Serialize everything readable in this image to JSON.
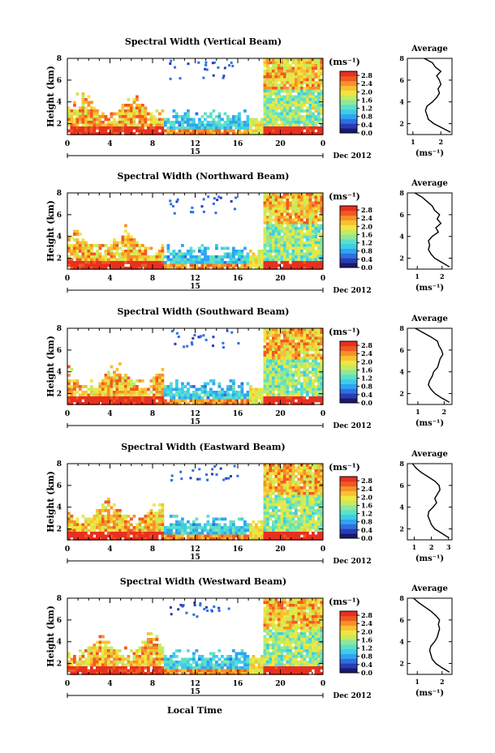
{
  "figure": {
    "xlabel_bottom": "Local Time",
    "date_label": "Dec 2012",
    "day_label": "15",
    "y_axis_label": "Height (km)",
    "unit_label": "(ms⁻¹)",
    "avg_title": "Average"
  },
  "colors": {
    "colormap": [
      "#1a1a6e",
      "#2a3cb4",
      "#2f6fe0",
      "#2fa4f0",
      "#3ccde8",
      "#5de0c8",
      "#8ee89a",
      "#c4ec5e",
      "#f0e640",
      "#f8c030",
      "#f89028",
      "#f05a20",
      "#e83020"
    ],
    "background": "#ffffff",
    "frame": "#000000"
  },
  "chart_data": [
    {
      "type": "heatmap",
      "title": "Spectral Width (Vertical Beam)",
      "ylabel": "Height (km)",
      "x_ticks": [
        "0",
        "4",
        "8",
        "12",
        "16",
        "20",
        "0"
      ],
      "y_ticks": [
        "2",
        "4",
        "6",
        "8"
      ],
      "xlim": [
        0,
        24
      ],
      "ylim": [
        1,
        8
      ],
      "colorbar_ticks": [
        "0.0",
        "0.4",
        "0.8",
        "1.2",
        "1.6",
        "2.0",
        "2.4",
        "2.8"
      ],
      "colorbar_range": [
        0.0,
        3.0
      ],
      "average_profile": {
        "title": "Average",
        "xlabel": "(ms⁻¹)",
        "x_ticks": [
          "1",
          "2"
        ],
        "y_ticks": [
          "2",
          "4",
          "6",
          "8"
        ],
        "xlim": [
          0.8,
          2.4
        ],
        "ylim": [
          1,
          8
        ],
        "height": [
          1.2,
          1.6,
          2.0,
          2.4,
          2.8,
          3.2,
          3.6,
          4.0,
          4.4,
          4.8,
          5.2,
          5.6,
          6.0,
          6.4,
          6.8,
          7.2,
          7.6,
          8.0
        ],
        "value": [
          2.35,
          2.05,
          1.75,
          1.55,
          1.5,
          1.45,
          1.5,
          1.7,
          1.85,
          1.95,
          1.9,
          2.0,
          1.95,
          1.85,
          2.0,
          1.8,
          1.7,
          1.4
        ]
      }
    },
    {
      "type": "heatmap",
      "title": "Spectral Width (Northward Beam)",
      "ylabel": "Height (km)",
      "x_ticks": [
        "0",
        "4",
        "8",
        "12",
        "16",
        "20",
        "0"
      ],
      "y_ticks": [
        "2",
        "4",
        "6",
        "8"
      ],
      "xlim": [
        0,
        24
      ],
      "ylim": [
        1,
        8
      ],
      "colorbar_ticks": [
        "0.0",
        "0.4",
        "0.8",
        "1.2",
        "1.6",
        "2.0",
        "2.4",
        "2.8"
      ],
      "colorbar_range": [
        0.0,
        3.0
      ],
      "average_profile": {
        "title": "Average",
        "xlabel": "(ms⁻¹)",
        "x_ticks": [
          "1",
          "2"
        ],
        "y_ticks": [
          "2",
          "4",
          "6",
          "8"
        ],
        "xlim": [
          0.6,
          2.4
        ],
        "ylim": [
          1,
          8
        ],
        "height": [
          1.2,
          1.6,
          2.0,
          2.4,
          2.8,
          3.2,
          3.6,
          4.0,
          4.4,
          4.8,
          5.2,
          5.6,
          6.0,
          6.4,
          6.8,
          7.2,
          7.6,
          8.0
        ],
        "value": [
          2.3,
          2.0,
          1.7,
          1.55,
          1.45,
          1.5,
          1.45,
          1.6,
          1.85,
          1.75,
          1.95,
          1.8,
          1.9,
          1.7,
          1.6,
          1.4,
          1.2,
          0.9
        ]
      }
    },
    {
      "type": "heatmap",
      "title": "Spectral Width (Southward Beam)",
      "ylabel": "Height (km)",
      "x_ticks": [
        "0",
        "4",
        "8",
        "12",
        "16",
        "20",
        "0"
      ],
      "y_ticks": [
        "2",
        "4",
        "6",
        "8"
      ],
      "xlim": [
        0,
        24
      ],
      "ylim": [
        1,
        8
      ],
      "colorbar_ticks": [
        "0.0",
        "0.4",
        "0.8",
        "1.2",
        "1.6",
        "2.0",
        "2.4",
        "2.8"
      ],
      "colorbar_range": [
        0.0,
        3.0
      ],
      "average_profile": {
        "title": "Average",
        "xlabel": "(ms⁻¹)",
        "x_ticks": [
          "1",
          "2"
        ],
        "y_ticks": [
          "2",
          "4",
          "6",
          "8"
        ],
        "xlim": [
          0.6,
          2.3
        ],
        "ylim": [
          1,
          8
        ],
        "height": [
          1.2,
          1.6,
          2.0,
          2.4,
          2.8,
          3.2,
          3.6,
          4.0,
          4.4,
          4.8,
          5.2,
          5.6,
          6.0,
          6.4,
          6.8,
          7.2,
          7.6,
          8.0
        ],
        "value": [
          2.2,
          1.9,
          1.65,
          1.5,
          1.4,
          1.45,
          1.55,
          1.6,
          1.75,
          1.8,
          1.85,
          1.95,
          1.9,
          1.8,
          1.75,
          1.5,
          1.2,
          0.9
        ]
      }
    },
    {
      "type": "heatmap",
      "title": "Spectral Width (Eastward Beam)",
      "ylabel": "Height (km)",
      "x_ticks": [
        "0",
        "4",
        "8",
        "12",
        "16",
        "20",
        "0"
      ],
      "y_ticks": [
        "2",
        "4",
        "6",
        "8"
      ],
      "xlim": [
        0,
        24
      ],
      "ylim": [
        1,
        8
      ],
      "colorbar_ticks": [
        "0.0",
        "0.4",
        "0.8",
        "1.2",
        "1.6",
        "2.0",
        "2.4",
        "2.8"
      ],
      "colorbar_range": [
        0.0,
        3.0
      ],
      "average_profile": {
        "title": "Average",
        "xlabel": "(ms⁻¹)",
        "x_ticks": [
          "1",
          "2",
          "3"
        ],
        "y_ticks": [
          "2",
          "4",
          "6",
          "8"
        ],
        "xlim": [
          0.6,
          3.2
        ],
        "ylim": [
          1,
          8
        ],
        "height": [
          1.2,
          1.6,
          2.0,
          2.4,
          2.8,
          3.2,
          3.6,
          4.0,
          4.4,
          4.8,
          5.2,
          5.6,
          6.0,
          6.4,
          6.8,
          7.2,
          7.6,
          8.0
        ],
        "value": [
          3.0,
          2.6,
          2.2,
          2.0,
          1.9,
          1.8,
          1.85,
          2.1,
          2.3,
          2.2,
          2.35,
          2.5,
          2.45,
          2.2,
          1.8,
          1.4,
          1.1,
          0.9
        ]
      }
    },
    {
      "type": "heatmap",
      "title": "Spectral Width (Westward Beam)",
      "ylabel": "Height (km)",
      "xlabel": "Local Time",
      "x_ticks": [
        "0",
        "4",
        "8",
        "12",
        "16",
        "20",
        "0"
      ],
      "y_ticks": [
        "2",
        "4",
        "6",
        "8"
      ],
      "xlim": [
        0,
        24
      ],
      "ylim": [
        1,
        8
      ],
      "colorbar_ticks": [
        "0.0",
        "0.4",
        "0.8",
        "1.2",
        "1.6",
        "2.0",
        "2.4",
        "2.8"
      ],
      "colorbar_range": [
        0.0,
        3.0
      ],
      "average_profile": {
        "title": "Average",
        "xlabel": "(ms⁻¹)",
        "x_ticks": [
          "1",
          "2"
        ],
        "y_ticks": [
          "2",
          "4",
          "6",
          "8"
        ],
        "xlim": [
          0.6,
          2.4
        ],
        "ylim": [
          1,
          8
        ],
        "height": [
          1.2,
          1.6,
          2.0,
          2.4,
          2.8,
          3.2,
          3.6,
          4.0,
          4.4,
          4.8,
          5.2,
          5.6,
          6.0,
          6.4,
          6.8,
          7.2,
          7.6,
          8.0
        ],
        "value": [
          2.3,
          2.0,
          1.75,
          1.6,
          1.55,
          1.5,
          1.55,
          1.7,
          1.8,
          1.85,
          1.9,
          1.85,
          1.9,
          1.75,
          1.55,
          1.3,
          1.05,
          0.85
        ]
      }
    }
  ]
}
